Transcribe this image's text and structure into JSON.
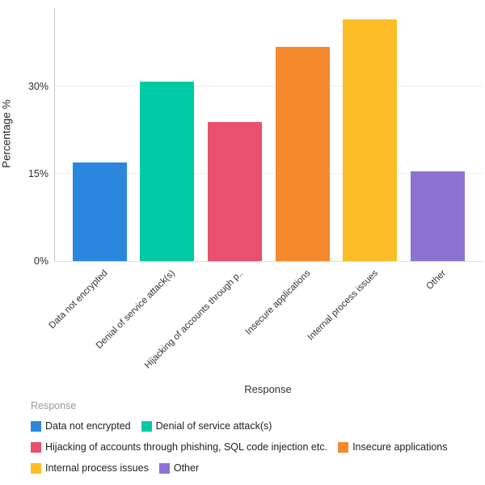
{
  "chart_data": {
    "type": "bar",
    "title": "",
    "xlabel": "Response",
    "ylabel": "Percentage %",
    "categories": [
      "Data not encrypted",
      "Denial of service attack(s)",
      "Hijacking of accounts through phishing, SQL code injection etc.",
      "Insecure applications",
      "Internal process issues",
      "Other"
    ],
    "x_tick_labels": [
      "Data not encrypted",
      "Denial of service attack(s)",
      "Hijacking of accounts through p..",
      "Insecure applications",
      "Internal process issues",
      "Other"
    ],
    "values": [
      17,
      30.8,
      23.9,
      36.8,
      41.5,
      15.4
    ],
    "bar_colors": [
      "#2B87DD",
      "#00CAA6",
      "#E8506E",
      "#F6882E",
      "#FCBD27",
      "#8E72D1"
    ],
    "y_ticks": [
      0,
      15,
      30
    ],
    "y_tick_labels": [
      "0%",
      "15%",
      "30%"
    ],
    "ylim": [
      0,
      43.5
    ],
    "grid": true,
    "legend_position": "bottom"
  },
  "legend": {
    "title": "Response",
    "items": [
      {
        "label": "Data not encrypted",
        "color": "#2B87DD"
      },
      {
        "label": "Denial of service attack(s)",
        "color": "#00CAA6"
      },
      {
        "label": "Hijacking of accounts through phishing, SQL code injection etc.",
        "color": "#E8506E"
      },
      {
        "label": "Insecure applications",
        "color": "#F6882E"
      },
      {
        "label": "Internal process issues",
        "color": "#FCBD27"
      },
      {
        "label": "Other",
        "color": "#8E72D1"
      }
    ]
  }
}
